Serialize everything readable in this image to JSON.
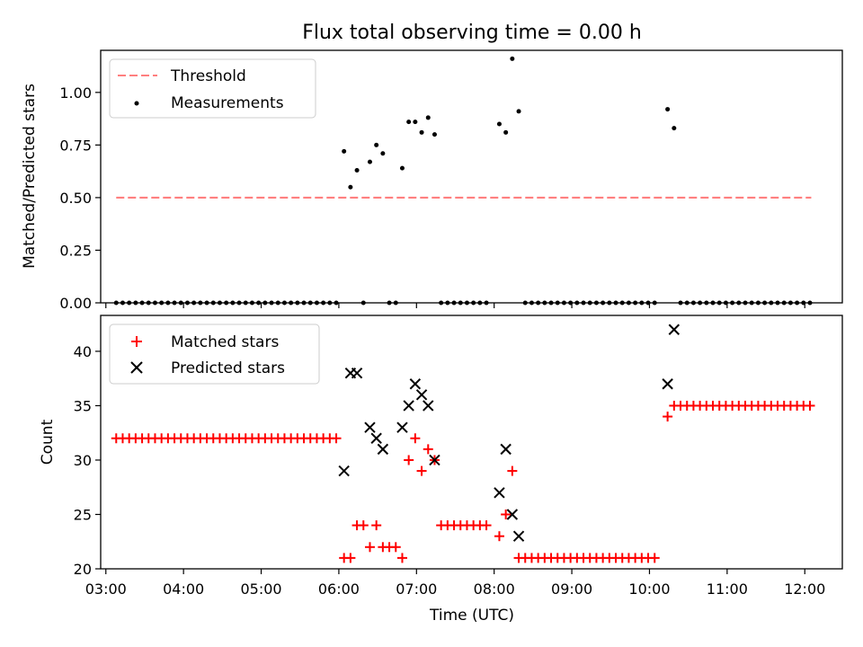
{
  "chart_data": [
    {
      "type": "scatter",
      "title": "Flux total observing time = 0.00 h",
      "xlabel": "",
      "ylabel": "Matched/Predicted stars",
      "xlim": [
        "02:56",
        "12:29"
      ],
      "ylim": [
        0,
        1.2
      ],
      "xticks": [
        "03:00",
        "04:00",
        "05:00",
        "06:00",
        "07:00",
        "08:00",
        "09:00",
        "10:00",
        "11:00",
        "12:00"
      ],
      "yticks": [
        "0.00",
        "0.25",
        "0.50",
        "0.75",
        "1.00"
      ],
      "xtick_labels_shown": false,
      "legend_position": "upper-left",
      "grid": false,
      "series": [
        {
          "name": "Threshold",
          "style": "dashed-line",
          "color": "#ff7f7f",
          "points": [
            [
              "03:08",
              0.5
            ],
            [
              "12:05",
              0.5
            ]
          ]
        },
        {
          "name": "Measurements",
          "style": "dot",
          "color": "#000000",
          "points": [
            [
              "03:08",
              0
            ],
            [
              "03:13",
              0
            ],
            [
              "03:18",
              0
            ],
            [
              "03:23",
              0
            ],
            [
              "03:28",
              0
            ],
            [
              "03:33",
              0
            ],
            [
              "03:38",
              0
            ],
            [
              "03:43",
              0
            ],
            [
              "03:48",
              0
            ],
            [
              "03:53",
              0
            ],
            [
              "03:58",
              0
            ],
            [
              "04:03",
              0
            ],
            [
              "04:08",
              0
            ],
            [
              "04:13",
              0
            ],
            [
              "04:18",
              0
            ],
            [
              "04:23",
              0
            ],
            [
              "04:28",
              0
            ],
            [
              "04:33",
              0
            ],
            [
              "04:38",
              0
            ],
            [
              "04:43",
              0
            ],
            [
              "04:48",
              0
            ],
            [
              "04:53",
              0
            ],
            [
              "04:58",
              0
            ],
            [
              "05:03",
              0
            ],
            [
              "05:08",
              0
            ],
            [
              "05:13",
              0
            ],
            [
              "05:18",
              0
            ],
            [
              "05:23",
              0
            ],
            [
              "05:28",
              0
            ],
            [
              "05:33",
              0
            ],
            [
              "05:38",
              0
            ],
            [
              "05:43",
              0
            ],
            [
              "05:48",
              0
            ],
            [
              "05:53",
              0
            ],
            [
              "05:58",
              0
            ],
            [
              "06:04",
              0.72
            ],
            [
              "06:09",
              0.55
            ],
            [
              "06:14",
              0.63
            ],
            [
              "06:19",
              0
            ],
            [
              "06:24",
              0.67
            ],
            [
              "06:29",
              0.75
            ],
            [
              "06:34",
              0.71
            ],
            [
              "06:39",
              0
            ],
            [
              "06:44",
              0
            ],
            [
              "06:49",
              0.64
            ],
            [
              "06:54",
              0.86
            ],
            [
              "06:59",
              0.86
            ],
            [
              "07:04",
              0.81
            ],
            [
              "07:09",
              0.88
            ],
            [
              "07:14",
              0.8
            ],
            [
              "07:19",
              0
            ],
            [
              "07:24",
              0
            ],
            [
              "07:29",
              0
            ],
            [
              "07:34",
              0
            ],
            [
              "07:39",
              0
            ],
            [
              "07:44",
              0
            ],
            [
              "07:49",
              0
            ],
            [
              "07:54",
              0
            ],
            [
              "08:04",
              0.85
            ],
            [
              "08:09",
              0.81
            ],
            [
              "08:14",
              1.16
            ],
            [
              "08:19",
              0.91
            ],
            [
              "08:24",
              0
            ],
            [
              "08:29",
              0
            ],
            [
              "08:34",
              0
            ],
            [
              "08:39",
              0
            ],
            [
              "08:44",
              0
            ],
            [
              "08:49",
              0
            ],
            [
              "08:54",
              0
            ],
            [
              "08:59",
              0
            ],
            [
              "09:04",
              0
            ],
            [
              "09:09",
              0
            ],
            [
              "09:14",
              0
            ],
            [
              "09:19",
              0
            ],
            [
              "09:24",
              0
            ],
            [
              "09:29",
              0
            ],
            [
              "09:34",
              0
            ],
            [
              "09:39",
              0
            ],
            [
              "09:44",
              0
            ],
            [
              "09:49",
              0
            ],
            [
              "09:54",
              0
            ],
            [
              "09:59",
              0
            ],
            [
              "10:04",
              0
            ],
            [
              "10:14",
              0.92
            ],
            [
              "10:19",
              0.83
            ],
            [
              "10:24",
              0
            ],
            [
              "10:29",
              0
            ],
            [
              "10:34",
              0
            ],
            [
              "10:39",
              0
            ],
            [
              "10:44",
              0
            ],
            [
              "10:49",
              0
            ],
            [
              "10:54",
              0
            ],
            [
              "10:59",
              0
            ],
            [
              "11:04",
              0
            ],
            [
              "11:09",
              0
            ],
            [
              "11:14",
              0
            ],
            [
              "11:19",
              0
            ],
            [
              "11:24",
              0
            ],
            [
              "11:29",
              0
            ],
            [
              "11:34",
              0
            ],
            [
              "11:39",
              0
            ],
            [
              "11:44",
              0
            ],
            [
              "11:49",
              0
            ],
            [
              "11:54",
              0
            ],
            [
              "11:59",
              0
            ],
            [
              "12:04",
              0
            ]
          ]
        }
      ]
    },
    {
      "type": "scatter",
      "title": "",
      "xlabel": "Time (UTC)",
      "ylabel": "Count",
      "xlim": [
        "02:56",
        "12:29"
      ],
      "ylim": [
        20,
        43.3
      ],
      "xticks": [
        "03:00",
        "04:00",
        "05:00",
        "06:00",
        "07:00",
        "08:00",
        "09:00",
        "10:00",
        "11:00",
        "12:00"
      ],
      "yticks": [
        "20",
        "25",
        "30",
        "35",
        "40"
      ],
      "legend_position": "upper-left",
      "grid": false,
      "series": [
        {
          "name": "Matched stars",
          "marker": "+",
          "color": "#ff0000",
          "points": [
            [
              "03:08",
              32
            ],
            [
              "03:13",
              32
            ],
            [
              "03:18",
              32
            ],
            [
              "03:23",
              32
            ],
            [
              "03:28",
              32
            ],
            [
              "03:33",
              32
            ],
            [
              "03:38",
              32
            ],
            [
              "03:43",
              32
            ],
            [
              "03:48",
              32
            ],
            [
              "03:53",
              32
            ],
            [
              "03:58",
              32
            ],
            [
              "04:03",
              32
            ],
            [
              "04:08",
              32
            ],
            [
              "04:13",
              32
            ],
            [
              "04:18",
              32
            ],
            [
              "04:23",
              32
            ],
            [
              "04:28",
              32
            ],
            [
              "04:33",
              32
            ],
            [
              "04:38",
              32
            ],
            [
              "04:43",
              32
            ],
            [
              "04:48",
              32
            ],
            [
              "04:53",
              32
            ],
            [
              "04:58",
              32
            ],
            [
              "05:03",
              32
            ],
            [
              "05:08",
              32
            ],
            [
              "05:13",
              32
            ],
            [
              "05:18",
              32
            ],
            [
              "05:23",
              32
            ],
            [
              "05:28",
              32
            ],
            [
              "05:33",
              32
            ],
            [
              "05:38",
              32
            ],
            [
              "05:43",
              32
            ],
            [
              "05:48",
              32
            ],
            [
              "05:53",
              32
            ],
            [
              "05:58",
              32
            ],
            [
              "06:04",
              21
            ],
            [
              "06:09",
              21
            ],
            [
              "06:14",
              24
            ],
            [
              "06:19",
              24
            ],
            [
              "06:24",
              22
            ],
            [
              "06:29",
              24
            ],
            [
              "06:34",
              22
            ],
            [
              "06:39",
              22
            ],
            [
              "06:44",
              22
            ],
            [
              "06:49",
              21
            ],
            [
              "06:54",
              30
            ],
            [
              "06:59",
              32
            ],
            [
              "07:04",
              29
            ],
            [
              "07:09",
              31
            ],
            [
              "07:14",
              30
            ],
            [
              "07:19",
              24
            ],
            [
              "07:24",
              24
            ],
            [
              "07:29",
              24
            ],
            [
              "07:34",
              24
            ],
            [
              "07:39",
              24
            ],
            [
              "07:44",
              24
            ],
            [
              "07:49",
              24
            ],
            [
              "07:54",
              24
            ],
            [
              "08:04",
              23
            ],
            [
              "08:09",
              25
            ],
            [
              "08:14",
              29
            ],
            [
              "08:19",
              21
            ],
            [
              "08:24",
              21
            ],
            [
              "08:29",
              21
            ],
            [
              "08:34",
              21
            ],
            [
              "08:39",
              21
            ],
            [
              "08:44",
              21
            ],
            [
              "08:49",
              21
            ],
            [
              "08:54",
              21
            ],
            [
              "08:59",
              21
            ],
            [
              "09:04",
              21
            ],
            [
              "09:09",
              21
            ],
            [
              "09:14",
              21
            ],
            [
              "09:19",
              21
            ],
            [
              "09:24",
              21
            ],
            [
              "09:29",
              21
            ],
            [
              "09:34",
              21
            ],
            [
              "09:39",
              21
            ],
            [
              "09:44",
              21
            ],
            [
              "09:49",
              21
            ],
            [
              "09:54",
              21
            ],
            [
              "09:59",
              21
            ],
            [
              "10:04",
              21
            ],
            [
              "10:14",
              34
            ],
            [
              "10:19",
              35
            ],
            [
              "10:24",
              35
            ],
            [
              "10:29",
              35
            ],
            [
              "10:34",
              35
            ],
            [
              "10:39",
              35
            ],
            [
              "10:44",
              35
            ],
            [
              "10:49",
              35
            ],
            [
              "10:54",
              35
            ],
            [
              "10:59",
              35
            ],
            [
              "11:04",
              35
            ],
            [
              "11:09",
              35
            ],
            [
              "11:14",
              35
            ],
            [
              "11:19",
              35
            ],
            [
              "11:24",
              35
            ],
            [
              "11:29",
              35
            ],
            [
              "11:34",
              35
            ],
            [
              "11:39",
              35
            ],
            [
              "11:44",
              35
            ],
            [
              "11:49",
              35
            ],
            [
              "11:54",
              35
            ],
            [
              "11:59",
              35
            ],
            [
              "12:04",
              35
            ]
          ]
        },
        {
          "name": "Predicted stars",
          "marker": "x",
          "color": "#000000",
          "points": [
            [
              "06:04",
              29
            ],
            [
              "06:09",
              38
            ],
            [
              "06:14",
              38
            ],
            [
              "06:24",
              33
            ],
            [
              "06:29",
              32
            ],
            [
              "06:34",
              31
            ],
            [
              "06:49",
              33
            ],
            [
              "06:54",
              35
            ],
            [
              "06:59",
              37
            ],
            [
              "07:04",
              36
            ],
            [
              "07:09",
              35
            ],
            [
              "07:14",
              30
            ],
            [
              "08:04",
              27
            ],
            [
              "08:09",
              31
            ],
            [
              "08:14",
              25
            ],
            [
              "08:19",
              23
            ],
            [
              "10:14",
              37
            ],
            [
              "10:19",
              42
            ]
          ]
        }
      ]
    }
  ]
}
